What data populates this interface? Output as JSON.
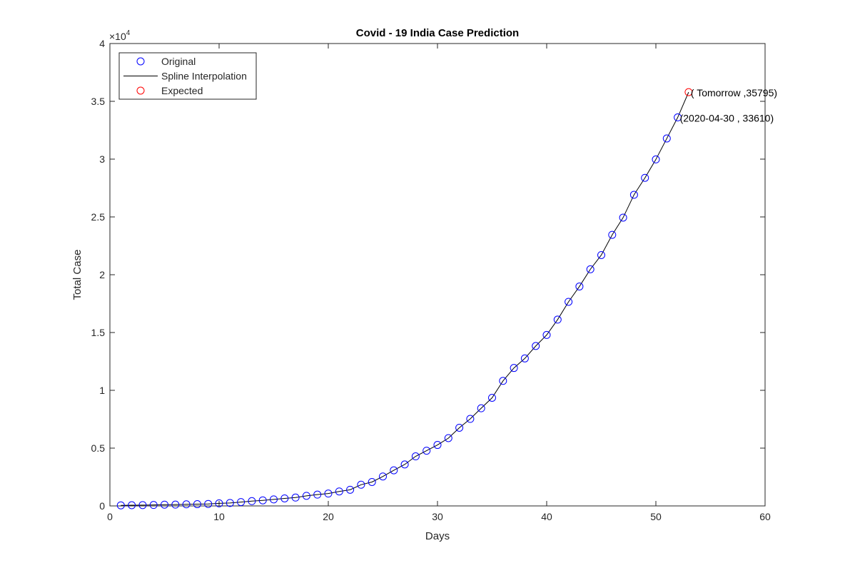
{
  "chart_data": {
    "type": "line",
    "title": "Covid - 19 India Case Prediction",
    "xlabel": "Days",
    "ylabel": "Total Case",
    "y_exponent_label": "×10",
    "y_exponent_power": "4",
    "xlim": [
      0,
      60
    ],
    "ylim": [
      0,
      40000
    ],
    "x_ticks": [
      0,
      10,
      20,
      30,
      40,
      50,
      60
    ],
    "x_tick_labels": [
      "0",
      "10",
      "20",
      "30",
      "40",
      "50",
      "60"
    ],
    "y_ticks": [
      0,
      5000,
      10000,
      15000,
      20000,
      25000,
      30000,
      35000,
      40000
    ],
    "y_tick_labels": [
      "0",
      "0.5",
      "1",
      "1.5",
      "2",
      "2.5",
      "3",
      "3.5",
      "4"
    ],
    "grid": false,
    "legend_position": "top-left",
    "legend": [
      {
        "label": "Original",
        "marker": "circle",
        "color": "#0000ff"
      },
      {
        "label": "Spline Interpolation",
        "marker": "line",
        "color": "#000000"
      },
      {
        "label": "Expected",
        "marker": "circle",
        "color": "#ff0000"
      }
    ],
    "series": [
      {
        "name": "Original",
        "style": "markers",
        "color": "#0000ff",
        "x": [
          1,
          2,
          3,
          4,
          5,
          6,
          7,
          8,
          9,
          10,
          11,
          12,
          13,
          14,
          15,
          16,
          17,
          18,
          19,
          20,
          21,
          22,
          23,
          24,
          25,
          26,
          27,
          28,
          29,
          30,
          31,
          32,
          33,
          34,
          35,
          36,
          37,
          38,
          39,
          40,
          41,
          42,
          43,
          44,
          45,
          46,
          47,
          48,
          49,
          50,
          51,
          52
        ],
        "y": [
          50,
          62,
          73,
          82,
          110,
          114,
          137,
          151,
          173,
          223,
          258,
          334,
          415,
          482,
          564,
          649,
          724,
          873,
          979,
          1071,
          1251,
          1397,
          1834,
          2069,
          2547,
          3082,
          3588,
          4289,
          4778,
          5274,
          5865,
          6761,
          7529,
          8447,
          9352,
          10815,
          11933,
          12759,
          13835,
          14792,
          16116,
          17656,
          18985,
          20471,
          21700,
          23452,
          24942,
          26917,
          28380,
          29974,
          31787,
          33610
        ]
      },
      {
        "name": "Spline Interpolation",
        "style": "line",
        "color": "#000000",
        "x": [
          1,
          2,
          3,
          4,
          5,
          6,
          7,
          8,
          9,
          10,
          11,
          12,
          13,
          14,
          15,
          16,
          17,
          18,
          19,
          20,
          21,
          22,
          23,
          24,
          25,
          26,
          27,
          28,
          29,
          30,
          31,
          32,
          33,
          34,
          35,
          36,
          37,
          38,
          39,
          40,
          41,
          42,
          43,
          44,
          45,
          46,
          47,
          48,
          49,
          50,
          51,
          52,
          53
        ],
        "y": [
          50,
          62,
          73,
          82,
          110,
          114,
          137,
          151,
          173,
          223,
          258,
          334,
          415,
          482,
          564,
          649,
          724,
          873,
          979,
          1071,
          1251,
          1397,
          1834,
          2069,
          2547,
          3082,
          3588,
          4289,
          4778,
          5274,
          5865,
          6761,
          7529,
          8447,
          9352,
          10815,
          11933,
          12759,
          13835,
          14792,
          16116,
          17656,
          18985,
          20471,
          21700,
          23452,
          24942,
          26917,
          28380,
          29974,
          31787,
          33610,
          35795
        ]
      },
      {
        "name": "Expected",
        "style": "markers",
        "color": "#ff0000",
        "x": [
          53
        ],
        "y": [
          35795
        ]
      }
    ],
    "annotations": [
      {
        "text": "( Tomorrow ,35795)",
        "x": 53,
        "y": 35795
      },
      {
        "text": "(2020-04-30 , 33610)",
        "x": 52,
        "y": 33610
      }
    ]
  }
}
